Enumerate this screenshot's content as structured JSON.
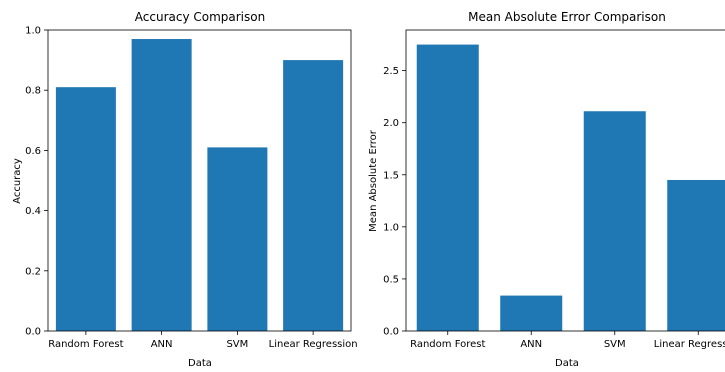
{
  "chart_data": [
    {
      "type": "bar",
      "title": "Accuracy Comparison",
      "xlabel": "Data",
      "ylabel": "Accuracy",
      "categories": [
        "Random Forest",
        "ANN",
        "SVM",
        "Linear Regression"
      ],
      "values": [
        0.81,
        0.97,
        0.61,
        0.9
      ],
      "ylim": [
        0,
        1.0
      ],
      "yticks": [
        "0.0",
        "0.2",
        "0.4",
        "0.6",
        "0.8",
        "1.0"
      ],
      "color": "#1f77b4",
      "grid": false
    },
    {
      "type": "bar",
      "title": "Mean Absolute Error Comparison",
      "xlabel": "Data",
      "ylabel": "Mean Absolute Error",
      "categories": [
        "Random Forest",
        "ANN",
        "SVM",
        "Linear Regression"
      ],
      "values": [
        2.75,
        0.34,
        2.11,
        1.45
      ],
      "ylim": [
        0,
        2.89
      ],
      "yticks": [
        "0.0",
        "0.5",
        "1.0",
        "1.5",
        "2.0",
        "2.5"
      ],
      "color": "#1f77b4",
      "grid": false
    }
  ]
}
